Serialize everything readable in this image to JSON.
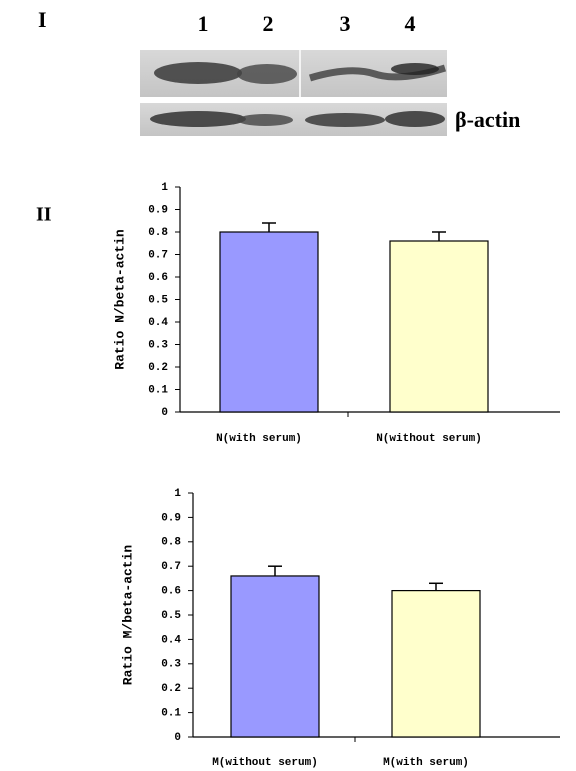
{
  "panel_labels": [
    "I",
    "II"
  ],
  "blot": {
    "lanes": [
      "1",
      "2",
      "3",
      "4"
    ],
    "loading_control": "β-actin"
  },
  "chart_data": [
    {
      "type": "bar",
      "ylabel": "Ratio N/beta-actin",
      "categories": [
        "N(with serum)",
        "N(without serum)"
      ],
      "values": [
        0.8,
        0.76
      ],
      "errors": [
        0.04,
        0.04
      ],
      "colors": [
        "#9999ff",
        "#ffffcc"
      ],
      "ylim": [
        0,
        1
      ],
      "yticks": [
        0,
        0.1,
        0.2,
        0.3,
        0.4,
        0.5,
        0.6,
        0.7,
        0.8,
        0.9,
        1
      ]
    },
    {
      "type": "bar",
      "ylabel": "Ratio M/beta-actin",
      "categories": [
        "M(without serum)",
        "M(with serum)"
      ],
      "values": [
        0.66,
        0.6
      ],
      "errors": [
        0.04,
        0.03
      ],
      "colors": [
        "#9999ff",
        "#ffffcc"
      ],
      "ylim": [
        0,
        1
      ],
      "yticks": [
        0,
        0.1,
        0.2,
        0.3,
        0.4,
        0.5,
        0.6,
        0.7,
        0.8,
        0.9,
        1
      ]
    }
  ]
}
